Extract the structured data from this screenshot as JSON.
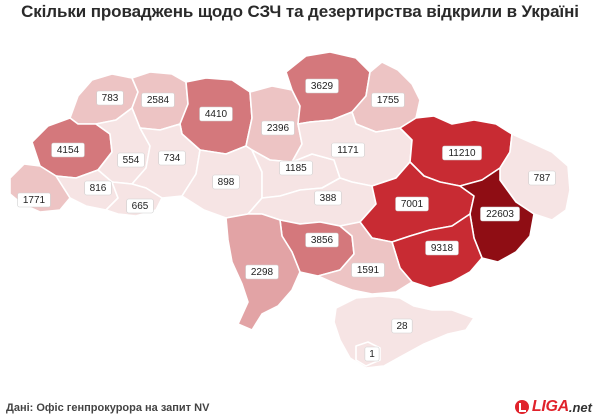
{
  "title": "Скільки проваджень щодо СЗЧ та дезертирства відкрили в Україні",
  "source": "Дані: Офіс генпрокурора на запит NV",
  "logo": {
    "brand": "LIGA",
    "suffix": ".net"
  },
  "colors": {
    "scale": [
      "#f6e4e4",
      "#edc4c4",
      "#e2a3a5",
      "#d4787c",
      "#c82b33",
      "#8f0d14"
    ],
    "background": "#ffffff"
  },
  "regions": [
    {
      "id": "volyn",
      "value": "783",
      "level": 1
    },
    {
      "id": "rivne",
      "value": "2584",
      "level": 1
    },
    {
      "id": "zhytomyr",
      "value": "4410",
      "level": 3
    },
    {
      "id": "kyiv",
      "value": "2396",
      "level": 1
    },
    {
      "id": "chernihiv",
      "value": "3629",
      "level": 3
    },
    {
      "id": "sumy",
      "value": "1755",
      "level": 1
    },
    {
      "id": "lviv",
      "value": "4154",
      "level": 3
    },
    {
      "id": "ternopil",
      "value": "554",
      "level": 0
    },
    {
      "id": "khmelnytskyi",
      "value": "734",
      "level": 0
    },
    {
      "id": "vinnytsia",
      "value": "898",
      "level": 0
    },
    {
      "id": "cherkasy",
      "value": "1185",
      "level": 0
    },
    {
      "id": "poltava",
      "value": "1171",
      "level": 0
    },
    {
      "id": "kharkiv",
      "value": "11210",
      "level": 4
    },
    {
      "id": "luhansk",
      "value": "787",
      "level": 0
    },
    {
      "id": "ivano-frankivsk",
      "value": "816",
      "level": 0
    },
    {
      "id": "chernivtsi",
      "value": "665",
      "level": 0
    },
    {
      "id": "zakarpattia",
      "value": "1771",
      "level": 1
    },
    {
      "id": "kirovohrad",
      "value": "388",
      "level": 0
    },
    {
      "id": "dnipro",
      "value": "7001",
      "level": 4
    },
    {
      "id": "donetsk",
      "value": "22603",
      "level": 5
    },
    {
      "id": "zaporizhzhia",
      "value": "9318",
      "level": 4
    },
    {
      "id": "mykolaiv",
      "value": "3856",
      "level": 3
    },
    {
      "id": "odesa",
      "value": "2298",
      "level": 2
    },
    {
      "id": "kherson",
      "value": "1591",
      "level": 1
    },
    {
      "id": "crimea",
      "value": "28",
      "level": 0
    },
    {
      "id": "sevastopol",
      "value": "1",
      "level": 0
    }
  ]
}
